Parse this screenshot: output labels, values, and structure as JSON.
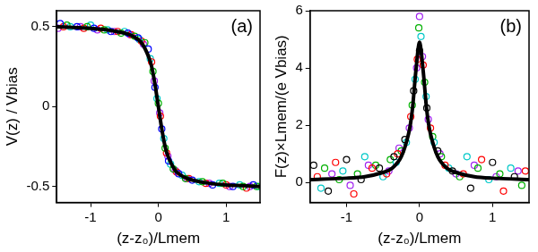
{
  "chart_data": [
    {
      "type": "scatter",
      "panel_label": "(a)",
      "x_label": "(z-z₀)/Lmem",
      "y_label": "V(z) / Vbias",
      "xlim": [
        -1.5,
        1.5
      ],
      "xticks": [
        -1,
        0,
        1
      ],
      "ylim": [
        -0.6,
        0.6
      ],
      "yticks": [
        -0.5,
        0,
        0.5
      ],
      "grid": false,
      "series": [
        {
          "type": "scatter",
          "marker": "circle",
          "color": "#0000ff",
          "x": [
            -1.45,
            -1.2,
            -0.95,
            -0.7,
            -0.45,
            -0.3,
            -0.15,
            -0.05,
            0.05,
            0.15,
            0.3,
            0.5,
            0.8,
            1.1,
            1.4
          ],
          "values": [
            0.52,
            0.5,
            0.49,
            0.47,
            0.46,
            0.43,
            0.36,
            0.12,
            -0.14,
            -0.34,
            -0.42,
            -0.46,
            -0.49,
            -0.5,
            -0.49
          ]
        },
        {
          "type": "scatter",
          "marker": "circle",
          "color": "#00b000",
          "x": [
            -1.35,
            -1.05,
            -0.8,
            -0.55,
            -0.35,
            -0.2,
            -0.08,
            0.0,
            0.1,
            0.22,
            0.4,
            0.65,
            0.95,
            1.25,
            1.45
          ],
          "values": [
            0.51,
            0.5,
            0.48,
            0.46,
            0.44,
            0.4,
            0.22,
            0.02,
            -0.26,
            -0.39,
            -0.45,
            -0.47,
            -0.48,
            -0.5,
            -0.5
          ]
        },
        {
          "type": "scatter",
          "marker": "circle",
          "color": "#ff0000",
          "x": [
            -1.4,
            -1.1,
            -0.85,
            -0.6,
            -0.4,
            -0.25,
            -0.1,
            0.03,
            0.12,
            0.27,
            0.45,
            0.7,
            1.0,
            1.3
          ],
          "values": [
            0.5,
            0.49,
            0.49,
            0.47,
            0.45,
            0.41,
            0.28,
            -0.06,
            -0.29,
            -0.41,
            -0.45,
            -0.48,
            -0.49,
            -0.51
          ]
        },
        {
          "type": "scatter",
          "marker": "circle",
          "color": "#00c8c8",
          "x": [
            -1.3,
            -1.0,
            -0.75,
            -0.5,
            -0.28,
            -0.12,
            -0.02,
            0.08,
            0.18,
            0.35,
            0.6,
            0.9,
            1.2,
            1.48
          ],
          "values": [
            0.5,
            0.51,
            0.48,
            0.47,
            0.42,
            0.3,
            0.05,
            -0.2,
            -0.36,
            -0.43,
            -0.47,
            -0.48,
            -0.49,
            -0.5
          ]
        },
        {
          "type": "scatter",
          "marker": "circle",
          "color": "#a020f0",
          "x": [
            -1.48,
            -1.15,
            -0.9,
            -0.65,
            -0.42,
            -0.22,
            -0.06,
            0.02,
            0.14,
            0.25,
            0.42,
            0.75,
            1.05,
            1.35
          ],
          "values": [
            0.49,
            0.5,
            0.48,
            0.47,
            0.45,
            0.39,
            0.16,
            -0.04,
            -0.31,
            -0.4,
            -0.45,
            -0.48,
            -0.5,
            -0.5
          ]
        },
        {
          "type": "line",
          "line_style": "solid",
          "color": "#000000",
          "x": [
            -1.5,
            -1.25,
            -1,
            -0.75,
            -0.5,
            -0.375,
            -0.25,
            -0.125,
            -0.0625,
            0,
            0.0625,
            0.125,
            0.25,
            0.375,
            0.5,
            0.75,
            1,
            1.25,
            1.5
          ],
          "values": [
            0.5,
            0.495,
            0.49,
            0.48,
            0.46,
            0.44,
            0.4,
            0.29,
            0.17,
            0,
            -0.17,
            -0.29,
            -0.4,
            -0.44,
            -0.46,
            -0.48,
            -0.49,
            -0.495,
            -0.5
          ]
        }
      ]
    },
    {
      "type": "scatter",
      "panel_label": "(b)",
      "x_label": "(z-z₀)/Lmem",
      "y_label": "F(z)×Lmem/(e Vbias)",
      "xlim": [
        -1.5,
        1.5
      ],
      "xticks": [
        -1,
        0,
        1
      ],
      "ylim": [
        -0.7,
        6
      ],
      "yticks": [
        0,
        2,
        4,
        6
      ],
      "grid": false,
      "series": [
        {
          "type": "scatter",
          "marker": "circle",
          "color": "#000000",
          "x": [
            -1.45,
            -1.25,
            -1.0,
            -0.8,
            -0.55,
            -0.35,
            -0.2,
            -0.08,
            0.0,
            0.1,
            0.25,
            0.45,
            0.7,
            1.0,
            1.3
          ],
          "values": [
            0.6,
            -0.3,
            0.8,
            0.1,
            0.5,
            0.9,
            1.5,
            3.2,
            4.6,
            2.6,
            1.1,
            0.4,
            -0.2,
            0.7,
            0.2
          ]
        },
        {
          "type": "scatter",
          "marker": "circle",
          "color": "#ff0000",
          "x": [
            -1.4,
            -1.15,
            -0.9,
            -0.65,
            -0.45,
            -0.3,
            -0.12,
            -0.03,
            0.05,
            0.15,
            0.35,
            0.6,
            0.85,
            1.15,
            1.45
          ],
          "values": [
            0.2,
            0.7,
            -0.4,
            0.5,
            0.3,
            1.0,
            2.3,
            4.3,
            4.1,
            1.9,
            0.6,
            0.3,
            0.8,
            -0.3,
            0.4
          ]
        },
        {
          "type": "scatter",
          "marker": "circle",
          "color": "#00c8c8",
          "x": [
            -1.35,
            -1.05,
            -0.75,
            -0.5,
            -0.32,
            -0.18,
            -0.06,
            0.02,
            0.09,
            0.2,
            0.4,
            0.65,
            0.95,
            1.25
          ],
          "values": [
            -0.2,
            0.4,
            0.9,
            0.2,
            0.7,
            1.4,
            3.6,
            5.1,
            3.0,
            1.4,
            0.5,
            0.9,
            0.1,
            0.5
          ]
        },
        {
          "type": "scatter",
          "marker": "circle",
          "color": "#00b000",
          "x": [
            -1.3,
            -1.1,
            -0.85,
            -0.6,
            -0.4,
            -0.25,
            -0.1,
            -0.01,
            0.07,
            0.18,
            0.3,
            0.55,
            0.8,
            1.1,
            1.4
          ],
          "values": [
            0.5,
            0.1,
            0.3,
            0.6,
            0.8,
            1.1,
            2.7,
            5.4,
            3.5,
            1.6,
            0.9,
            0.2,
            0.5,
            0.3,
            -0.1
          ]
        },
        {
          "type": "scatter",
          "marker": "circle",
          "color": "#a020f0",
          "x": [
            -1.2,
            -0.95,
            -0.7,
            -0.42,
            -0.28,
            -0.14,
            -0.04,
            0.0,
            0.04,
            0.12,
            0.28,
            0.5,
            0.75,
            1.05,
            1.35
          ],
          "values": [
            0.3,
            -0.1,
            0.6,
            0.4,
            1.2,
            1.9,
            4.0,
            5.8,
            4.4,
            2.2,
            1.0,
            0.3,
            0.6,
            0.2,
            0.4
          ]
        },
        {
          "type": "line",
          "line_style": "solid",
          "color": "#000000",
          "x": [
            -1.5,
            -1,
            -0.75,
            -0.5,
            -0.375,
            -0.25,
            -0.15,
            -0.1,
            -0.05,
            0,
            0.05,
            0.1,
            0.15,
            0.25,
            0.375,
            0.5,
            0.75,
            1,
            1.5
          ],
          "values": [
            0.1,
            0.15,
            0.2,
            0.35,
            0.5,
            0.9,
            1.7,
            2.5,
            3.9,
            4.9,
            3.9,
            2.5,
            1.7,
            0.9,
            0.5,
            0.35,
            0.2,
            0.15,
            0.1
          ]
        }
      ]
    }
  ]
}
